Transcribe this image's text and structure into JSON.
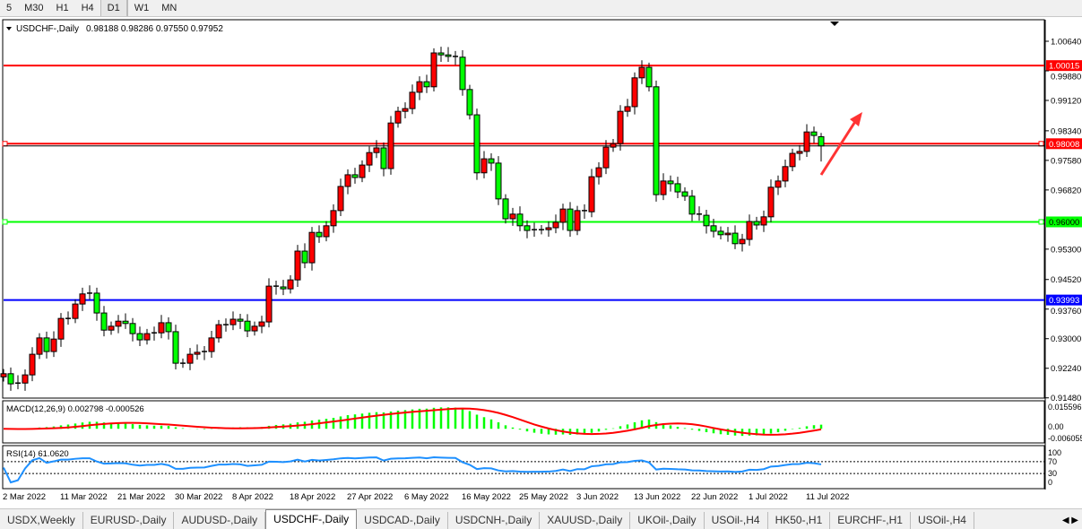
{
  "toolbar": {
    "timeframes": [
      {
        "label": "5"
      },
      {
        "label": "M30"
      },
      {
        "label": "H1"
      },
      {
        "label": "H4"
      },
      {
        "label": "D1",
        "active": true
      },
      {
        "label": "W1"
      },
      {
        "label": "MN"
      }
    ]
  },
  "chart_header": {
    "symbol": "USDCHF-,Daily",
    "ohlc": "0.98188 0.98286 0.97550 0.97952"
  },
  "colors": {
    "bull_candle": "#ff0000",
    "bear_candle": "#00ff00",
    "resistance_line": "#ff0000",
    "support_line": "#00ff00",
    "blue_line": "#0000ff",
    "macd_histogram": "#00ff00",
    "macd_signal": "#ff0000",
    "rsi_line": "#1e90ff"
  },
  "chart_data": [
    {
      "type": "candlestick",
      "title": "USDCHF-,Daily",
      "ylim": [
        0.9148,
        1.0064
      ],
      "y_ticks": [
        "1.00640",
        "0.99880",
        "0.99120",
        "0.98340",
        "0.97580",
        "0.96820",
        "0.95300",
        "0.94520",
        "0.93760",
        "0.93000",
        "0.92240",
        "0.91480"
      ],
      "x_tick_labels": [
        "2 Mar 2022",
        "11 Mar 2022",
        "21 Mar 2022",
        "30 Mar 2022",
        "8 Apr 2022",
        "18 Apr 2022",
        "27 Apr 2022",
        "6 May 2022",
        "16 May 2022",
        "25 May 2022",
        "3 Jun 2022",
        "13 Jun 2022",
        "22 Jun 2022",
        "1 Jul 2022",
        "11 Jul 2022"
      ],
      "x_tick_every_bars": 8,
      "closes": [
        0.921,
        0.9184,
        0.9186,
        0.9207,
        0.926,
        0.9302,
        0.9267,
        0.9299,
        0.9352,
        0.9352,
        0.9389,
        0.9415,
        0.9417,
        0.9366,
        0.9322,
        0.9332,
        0.9345,
        0.9339,
        0.9313,
        0.9297,
        0.9313,
        0.9315,
        0.9341,
        0.9318,
        0.9237,
        0.9237,
        0.926,
        0.9265,
        0.9267,
        0.9302,
        0.9336,
        0.9336,
        0.935,
        0.9345,
        0.932,
        0.9332,
        0.9343,
        0.9435,
        0.9433,
        0.9428,
        0.9451,
        0.9525,
        0.9495,
        0.9573,
        0.9562,
        0.959,
        0.9629,
        0.9691,
        0.9721,
        0.9714,
        0.9746,
        0.9778,
        0.979,
        0.9737,
        0.9854,
        0.9884,
        0.9891,
        0.9933,
        0.996,
        0.9947,
        1.0034,
        1.0029,
        1.0025,
        1.0023,
        0.994,
        0.9875,
        0.9726,
        0.9762,
        0.9751,
        0.9659,
        0.9608,
        0.962,
        0.959,
        0.9578,
        0.958,
        0.958,
        0.9585,
        0.9599,
        0.9633,
        0.9578,
        0.9629,
        0.9626,
        0.9716,
        0.9739,
        0.9792,
        0.9801,
        0.9884,
        0.9896,
        0.997,
        0.9997,
        0.9947,
        0.967,
        0.9705,
        0.9698,
        0.9677,
        0.9666,
        0.962,
        0.9617,
        0.959,
        0.9576,
        0.9567,
        0.9571,
        0.9544,
        0.9555,
        0.9601,
        0.9592,
        0.9613,
        0.9689,
        0.9705,
        0.9742,
        0.9776,
        0.9781,
        0.9831,
        0.9822,
        0.97952
      ],
      "last_bar": {
        "open": 0.98188,
        "high": 0.98286,
        "low": 0.9755,
        "close": 0.97952
      },
      "horizontal_lines": [
        {
          "price": 1.00015,
          "label": "1.00015",
          "color": "#ff0000"
        },
        {
          "price": 0.98008,
          "label": "0.98008",
          "color": "#ff0000"
        },
        {
          "price": 0.96,
          "label": "0.96000",
          "color": "#00ff00"
        },
        {
          "price": 0.93993,
          "label": "0.93993",
          "color": "#0000ff"
        }
      ],
      "bid_line": 0.97952,
      "annotation": {
        "type": "arrow",
        "direction": "up-right",
        "color": "#ff3333"
      }
    },
    {
      "type": "bar+line",
      "title": "MACD(12,26,9) 0.002798 -0.000526",
      "label": "MACD(12,26,9)",
      "values": "0.002798 -0.000526",
      "ylim": [
        -0.006055,
        0.015596
      ],
      "y_ticks": [
        "0.015596",
        "0.00",
        "-0.006055"
      ]
    },
    {
      "type": "line",
      "title": "RSI(14) 61.0620",
      "label": "RSI(14)",
      "value": "61.0620",
      "ylim": [
        0,
        100
      ],
      "levels": [
        70,
        30
      ],
      "y_ticks": [
        "100",
        "70",
        "30",
        "0"
      ]
    }
  ],
  "tabs": [
    {
      "label": "USDX,Weekly"
    },
    {
      "label": "EURUSD-,Daily"
    },
    {
      "label": "AUDUSD-,Daily"
    },
    {
      "label": "USDCHF-,Daily",
      "active": true
    },
    {
      "label": "USDCAD-,Daily"
    },
    {
      "label": "USDCNH-,Daily"
    },
    {
      "label": "XAUUSD-,Daily"
    },
    {
      "label": "UKOil-,Daily"
    },
    {
      "label": "USOil-,H4"
    },
    {
      "label": "HK50-,H1"
    },
    {
      "label": "EURCHF-,H1"
    },
    {
      "label": "USOil-,H4"
    }
  ],
  "tab_scroll_icons": [
    "chevron-left-icon",
    "chevron-right-icon"
  ]
}
